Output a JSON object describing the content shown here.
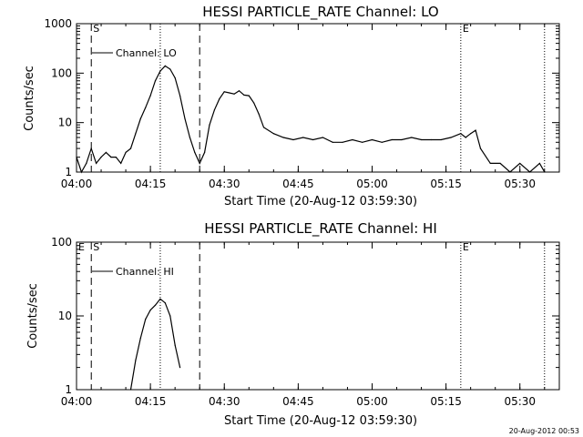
{
  "footer": {
    "timestamp": "20-Aug-2012 00:53"
  },
  "chart_data": [
    {
      "type": "line",
      "title": "HESSI PARTICLE_RATE Channel: LO",
      "xlabel": "Start Time (20-Aug-12 03:59:30)",
      "ylabel": "Counts/sec",
      "y_scale": "log",
      "ylim": [
        1,
        1000
      ],
      "xlim": [
        "04:00",
        "05:38"
      ],
      "x_ticks": [
        "04:00",
        "04:15",
        "04:30",
        "04:45",
        "05:00",
        "05:15",
        "05:30"
      ],
      "y_ticks": [
        "1",
        "10",
        "100",
        "1000"
      ],
      "legend": {
        "position": "top-left",
        "entries": [
          "Channel: LO"
        ]
      },
      "markers": [
        {
          "time": "04:00",
          "style": "dotted"
        },
        {
          "time": "04:03",
          "label": "S",
          "style": "dashed"
        },
        {
          "time": "04:17",
          "style": "dotted"
        },
        {
          "time": "04:25",
          "style": "dashed"
        },
        {
          "time": "05:18",
          "label": "E",
          "style": "dotted"
        },
        {
          "time": "05:35",
          "style": "dotted"
        }
      ],
      "series": [
        {
          "name": "Channel: LO",
          "x": [
            "04:00",
            "04:01",
            "04:02",
            "04:03",
            "04:04",
            "04:05",
            "04:06",
            "04:07",
            "04:08",
            "04:09",
            "04:10",
            "04:11",
            "04:12",
            "04:13",
            "04:14",
            "04:15",
            "04:16",
            "04:17",
            "04:18",
            "04:19",
            "04:20",
            "04:21",
            "04:22",
            "04:23",
            "04:24",
            "04:25",
            "04:26",
            "04:27",
            "04:28",
            "04:29",
            "04:30",
            "04:31",
            "04:32",
            "04:33",
            "04:34",
            "04:35",
            "04:36",
            "04:37",
            "04:38",
            "04:40",
            "04:42",
            "04:44",
            "04:46",
            "04:48",
            "04:50",
            "04:52",
            "04:54",
            "04:56",
            "04:58",
            "05:00",
            "05:02",
            "05:04",
            "05:06",
            "05:08",
            "05:10",
            "05:12",
            "05:14",
            "05:16",
            "05:18",
            "05:19",
            "05:20",
            "05:21",
            "05:22",
            "05:24",
            "05:26",
            "05:28",
            "05:30",
            "05:32",
            "05:34",
            "05:35"
          ],
          "y": [
            2,
            1,
            1.5,
            3,
            1.5,
            2,
            2.5,
            2,
            2,
            1.5,
            2.5,
            3,
            6,
            12,
            20,
            35,
            70,
            110,
            140,
            120,
            80,
            35,
            12,
            5,
            2.5,
            1.5,
            2.5,
            9,
            18,
            30,
            42,
            40,
            38,
            44,
            36,
            35,
            25,
            15,
            8,
            6,
            5,
            4.5,
            5,
            4.5,
            5,
            4,
            4,
            4.5,
            4,
            4.5,
            4,
            4.5,
            4.5,
            5,
            4.5,
            4.5,
            4.5,
            5,
            6,
            5,
            6,
            7,
            3,
            1.5,
            1.5,
            1,
            1.5,
            1,
            1.5,
            1
          ]
        }
      ]
    },
    {
      "type": "line",
      "title": "HESSI PARTICLE_RATE Channel: HI",
      "xlabel": "Start Time (20-Aug-12 03:59:30)",
      "ylabel": "Counts/sec",
      "y_scale": "log",
      "ylim": [
        1,
        100
      ],
      "xlim": [
        "04:00",
        "05:38"
      ],
      "x_ticks": [
        "04:00",
        "04:15",
        "04:30",
        "04:45",
        "05:00",
        "05:15",
        "05:30"
      ],
      "y_ticks": [
        "1",
        "10",
        "100"
      ],
      "legend": {
        "position": "top-left",
        "entries": [
          "Channel: HI"
        ]
      },
      "markers": [
        {
          "time": "04:00",
          "label": "E",
          "style": "none"
        },
        {
          "time": "04:03",
          "label": "S",
          "style": "dashed"
        },
        {
          "time": "04:17",
          "style": "dotted"
        },
        {
          "time": "04:25",
          "style": "dashed"
        },
        {
          "time": "05:18",
          "label": "E",
          "style": "dotted"
        },
        {
          "time": "05:35",
          "style": "dotted"
        }
      ],
      "series": [
        {
          "name": "Channel: HI",
          "x": [
            "04:11",
            "04:12",
            "04:13",
            "04:14",
            "04:15",
            "04:16",
            "04:17",
            "04:18",
            "04:19",
            "04:20",
            "04:21"
          ],
          "y": [
            1,
            2.5,
            5,
            9,
            12,
            14,
            17,
            15,
            10,
            4,
            2
          ]
        }
      ]
    }
  ]
}
